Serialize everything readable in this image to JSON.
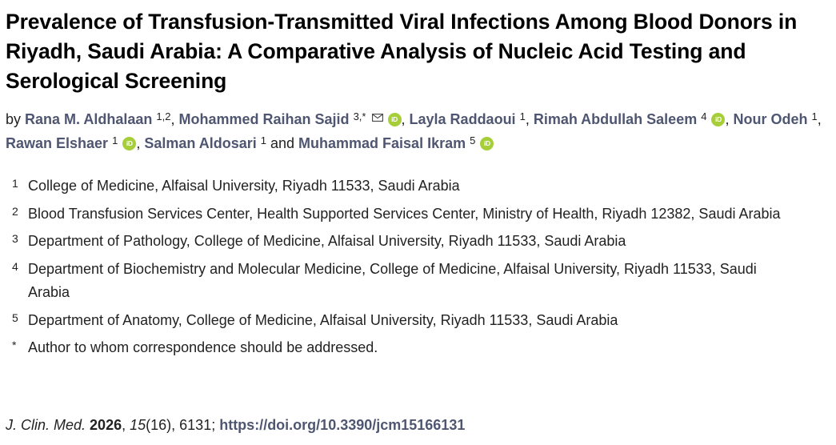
{
  "article": {
    "title": "Prevalence of Transfusion-Transmitted Viral Infections Among Blood Donors in Riyadh, Saudi Arabia: A Comparative Analysis of Nucleic Acid Testing and Serological Screening",
    "by_prefix": "by",
    "authors": [
      {
        "name": "Rana M. Aldhalaan",
        "aff": "1,2",
        "orcid": false,
        "email": false,
        "sep": ", "
      },
      {
        "name": "Mohammed Raihan Sajid",
        "aff": "3,*",
        "orcid": true,
        "email": true,
        "sep": ", "
      },
      {
        "name": "Layla Raddaoui",
        "aff": "1",
        "orcid": false,
        "email": false,
        "sep": ", "
      },
      {
        "name": "Rimah Abdullah Saleem",
        "aff": "4",
        "orcid": true,
        "email": false,
        "sep": ", "
      },
      {
        "name": "Nour Odeh",
        "aff": "1",
        "orcid": false,
        "email": false,
        "sep": ", "
      },
      {
        "name": "Rawan Elshaer",
        "aff": "1",
        "orcid": true,
        "email": false,
        "sep": ", "
      },
      {
        "name": "Salman Aldosari",
        "aff": "1",
        "orcid": false,
        "email": false,
        "sep": " and "
      },
      {
        "name": "Muhammad Faisal Ikram",
        "aff": "5",
        "orcid": true,
        "email": false,
        "sep": ""
      }
    ],
    "orcid_label": "iD",
    "affiliations": [
      {
        "num": "1",
        "text": "College of Medicine, Alfaisal University, Riyadh 11533, Saudi Arabia"
      },
      {
        "num": "2",
        "text": "Blood Transfusion Services Center, Health Supported Services Center, Ministry of Health, Riyadh 12382, Saudi Arabia"
      },
      {
        "num": "3",
        "text": "Department of Pathology, College of Medicine, Alfaisal University, Riyadh 11533, Saudi Arabia"
      },
      {
        "num": "4",
        "text": "Department of Biochemistry and Molecular Medicine, College of Medicine, Alfaisal University, Riyadh 11533, Saudi Arabia"
      },
      {
        "num": "5",
        "text": "Department of Anatomy, College of Medicine, Alfaisal University, Riyadh 11533, Saudi Arabia"
      },
      {
        "num": "*",
        "text": "Author to whom correspondence should be addressed."
      }
    ],
    "citation": {
      "journal": "J. Clin. Med.",
      "year": "2026",
      "volume": "15",
      "issue": "(16)",
      "article_number": ", 6131; ",
      "doi": "https://doi.org/10.3390/jcm15166131"
    }
  },
  "colors": {
    "author_link": "#4f5671",
    "orcid_badge": "#a6ce39",
    "title_text": "#000000"
  },
  "icons": {
    "orcid": "orcid-icon",
    "email": "envelope-icon"
  }
}
